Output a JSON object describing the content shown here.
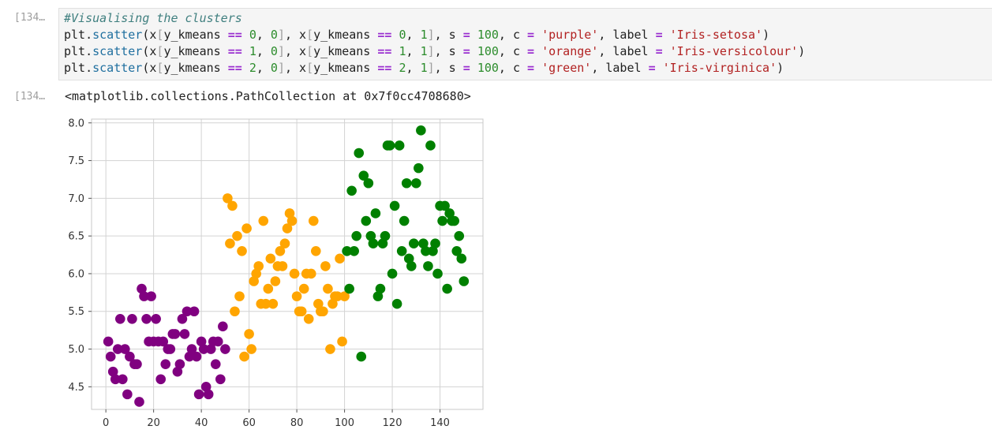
{
  "cells": [
    {
      "prompt": "[134…",
      "lines": [
        {
          "comment": "#Visualising the clusters"
        },
        {
          "cls": 0,
          "color": "purple",
          "label": "Iris-setosa"
        },
        {
          "cls": 1,
          "color": "orange",
          "label": "Iris-versicolour"
        },
        {
          "cls": 2,
          "color": "green",
          "label": "Iris-virginica"
        }
      ],
      "tokens": {
        "plt": "plt",
        "scatter": "scatter",
        "x": "x",
        "y_kmeans": "y_kmeans",
        "s": "s",
        "s_val": "100",
        "c": "c",
        "label": "label"
      }
    }
  ],
  "output": {
    "prompt": "[134…",
    "text": "<matplotlib.collections.PathCollection at 0x7f0cc4708680>"
  },
  "chart_data": {
    "type": "scatter",
    "xlim": [
      -6,
      158
    ],
    "ylim": [
      4.2,
      8.05
    ],
    "xticks": [
      0,
      20,
      40,
      60,
      80,
      100,
      120,
      140
    ],
    "yticks": [
      4.5,
      5.0,
      5.5,
      6.0,
      6.5,
      7.0,
      7.5,
      8.0
    ],
    "ytick_labels": [
      "4.5",
      "5.0",
      "5.5",
      "6.0",
      "6.5",
      "7.0",
      "7.5",
      "8.0"
    ],
    "grid": true,
    "series": [
      {
        "color": "#800080",
        "points": [
          [
            1,
            5.1
          ],
          [
            2,
            4.9
          ],
          [
            3,
            4.7
          ],
          [
            4,
            4.6
          ],
          [
            5,
            5.0
          ],
          [
            6,
            5.4
          ],
          [
            7,
            4.6
          ],
          [
            8,
            5.0
          ],
          [
            9,
            4.4
          ],
          [
            10,
            4.9
          ],
          [
            11,
            5.4
          ],
          [
            12,
            4.8
          ],
          [
            13,
            4.8
          ],
          [
            14,
            4.3
          ],
          [
            15,
            5.8
          ],
          [
            16,
            5.7
          ],
          [
            17,
            5.4
          ],
          [
            18,
            5.1
          ],
          [
            19,
            5.7
          ],
          [
            20,
            5.1
          ],
          [
            21,
            5.4
          ],
          [
            22,
            5.1
          ],
          [
            23,
            4.6
          ],
          [
            24,
            5.1
          ],
          [
            25,
            4.8
          ],
          [
            26,
            5.0
          ],
          [
            27,
            5.0
          ],
          [
            28,
            5.2
          ],
          [
            29,
            5.2
          ],
          [
            30,
            4.7
          ],
          [
            31,
            4.8
          ],
          [
            32,
            5.4
          ],
          [
            33,
            5.2
          ],
          [
            34,
            5.5
          ],
          [
            35,
            4.9
          ],
          [
            36,
            5.0
          ],
          [
            37,
            5.5
          ],
          [
            38,
            4.9
          ],
          [
            39,
            4.4
          ],
          [
            40,
            5.1
          ],
          [
            41,
            5.0
          ],
          [
            42,
            4.5
          ],
          [
            43,
            4.4
          ],
          [
            44,
            5.0
          ],
          [
            45,
            5.1
          ],
          [
            46,
            4.8
          ],
          [
            47,
            5.1
          ],
          [
            48,
            4.6
          ],
          [
            49,
            5.3
          ],
          [
            50,
            5.0
          ]
        ]
      },
      {
        "color": "#ffa500",
        "points": [
          [
            51,
            7.0
          ],
          [
            52,
            6.4
          ],
          [
            53,
            6.9
          ],
          [
            54,
            5.5
          ],
          [
            55,
            6.5
          ],
          [
            56,
            5.7
          ],
          [
            57,
            6.3
          ],
          [
            58,
            4.9
          ],
          [
            59,
            6.6
          ],
          [
            60,
            5.2
          ],
          [
            61,
            5.0
          ],
          [
            62,
            5.9
          ],
          [
            63,
            6.0
          ],
          [
            64,
            6.1
          ],
          [
            65,
            5.6
          ],
          [
            66,
            6.7
          ],
          [
            67,
            5.6
          ],
          [
            68,
            5.8
          ],
          [
            69,
            6.2
          ],
          [
            70,
            5.6
          ],
          [
            71,
            5.9
          ],
          [
            72,
            6.1
          ],
          [
            73,
            6.3
          ],
          [
            74,
            6.1
          ],
          [
            75,
            6.4
          ],
          [
            76,
            6.6
          ],
          [
            77,
            6.8
          ],
          [
            78,
            6.7
          ],
          [
            79,
            6.0
          ],
          [
            80,
            5.7
          ],
          [
            81,
            5.5
          ],
          [
            82,
            5.5
          ],
          [
            83,
            5.8
          ],
          [
            84,
            6.0
          ],
          [
            85,
            5.4
          ],
          [
            86,
            6.0
          ],
          [
            87,
            6.7
          ],
          [
            88,
            6.3
          ],
          [
            89,
            5.6
          ],
          [
            90,
            5.5
          ],
          [
            91,
            5.5
          ],
          [
            92,
            6.1
          ],
          [
            93,
            5.8
          ],
          [
            94,
            5.0
          ],
          [
            95,
            5.6
          ],
          [
            96,
            5.7
          ],
          [
            97,
            5.7
          ],
          [
            98,
            6.2
          ],
          [
            99,
            5.1
          ],
          [
            100,
            5.7
          ]
        ]
      },
      {
        "color": "#008000",
        "points": [
          [
            101,
            6.3
          ],
          [
            102,
            5.8
          ],
          [
            103,
            7.1
          ],
          [
            104,
            6.3
          ],
          [
            105,
            6.5
          ],
          [
            106,
            7.6
          ],
          [
            107,
            4.9
          ],
          [
            108,
            7.3
          ],
          [
            109,
            6.7
          ],
          [
            110,
            7.2
          ],
          [
            111,
            6.5
          ],
          [
            112,
            6.4
          ],
          [
            113,
            6.8
          ],
          [
            114,
            5.7
          ],
          [
            115,
            5.8
          ],
          [
            116,
            6.4
          ],
          [
            117,
            6.5
          ],
          [
            118,
            7.7
          ],
          [
            119,
            7.7
          ],
          [
            120,
            6.0
          ],
          [
            121,
            6.9
          ],
          [
            122,
            5.6
          ],
          [
            123,
            7.7
          ],
          [
            124,
            6.3
          ],
          [
            125,
            6.7
          ],
          [
            126,
            7.2
          ],
          [
            127,
            6.2
          ],
          [
            128,
            6.1
          ],
          [
            129,
            6.4
          ],
          [
            130,
            7.2
          ],
          [
            131,
            7.4
          ],
          [
            132,
            7.9
          ],
          [
            133,
            6.4
          ],
          [
            134,
            6.3
          ],
          [
            135,
            6.1
          ],
          [
            136,
            7.7
          ],
          [
            137,
            6.3
          ],
          [
            138,
            6.4
          ],
          [
            139,
            6.0
          ],
          [
            140,
            6.9
          ],
          [
            141,
            6.7
          ],
          [
            142,
            6.9
          ],
          [
            143,
            5.8
          ],
          [
            144,
            6.8
          ],
          [
            145,
            6.7
          ],
          [
            146,
            6.7
          ],
          [
            147,
            6.3
          ],
          [
            148,
            6.5
          ],
          [
            149,
            6.2
          ],
          [
            150,
            5.9
          ]
        ]
      }
    ]
  }
}
